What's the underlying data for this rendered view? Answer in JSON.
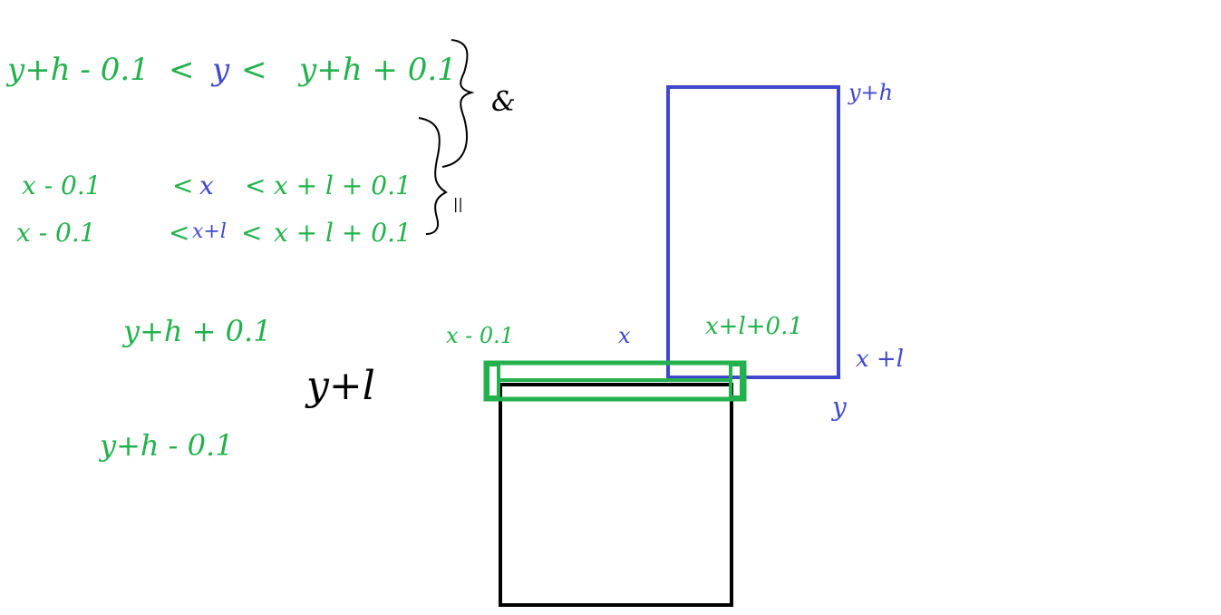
{
  "colors": {
    "green": "#22b14c",
    "blue": "#3f48cc",
    "black": "#000000",
    "background": "#ffffff"
  },
  "conditions": {
    "y_line": {
      "left": "y+h - 0.1",
      "lt1": "<",
      "var": "y",
      "lt2": "<",
      "right": "y+h + 0.1"
    },
    "x_line1": {
      "left": "x - 0.1",
      "lt1": "<",
      "var": "x",
      "lt2": "<",
      "right": "x + l + 0.1"
    },
    "x_line2": {
      "left": "x - 0.1",
      "lt1": "<",
      "var": "x+l",
      "lt2": "<",
      "right": "x + l + 0.1"
    },
    "and_symbol": "&",
    "or_symbol": "||"
  },
  "side_labels": {
    "yh_plus": "y+h + 0.1",
    "yh_minus": "y+h - 0.1",
    "y_plus_l": "y+l",
    "x_minus": "x - 0.1",
    "x": "x",
    "xl_plus": "x+l+0.1"
  },
  "blue_rect_labels": {
    "top": "y+h",
    "right": "x +l",
    "bottom": "y"
  }
}
